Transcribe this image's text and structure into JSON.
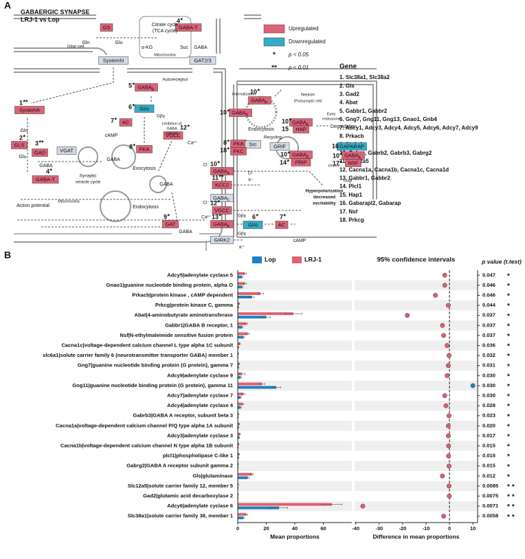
{
  "panel_a": {
    "label": "A",
    "title": "GABAERGIC SYNAPSE",
    "subtitle": "LRJ-1 vs Lop",
    "colors": {
      "up": "#de6279",
      "down": "#35abc7",
      "other": "#d3dbe6"
    },
    "legend": [
      {
        "state": "up",
        "label": "Upregulated"
      },
      {
        "state": "down",
        "label": "Downregulated"
      },
      {
        "symbol": "*",
        "label": "p < 0.05"
      },
      {
        "symbol": "**",
        "label": "p < 0.01"
      }
    ],
    "gene_title": "Gene",
    "genes": [
      "1. Slc38a1, Slc38a2",
      "2. Gls",
      "3. Gad2",
      "4. Abat",
      "5. Gabbr1, Gabbr2",
      "6. Gng7, Gng11, Gng13, Gnao1, Gnb4",
      "7. Adcy1, Adcy3, Adcy4, Adcy5, Adcy6, Adcy7, Adcy9",
      "8. Prkacb",
      "9. Slc6a1",
      "10. Gabrq, Gabrb2, Gabrb3, Gabrg2",
      "11. Slc12a5",
      "12. Cacna1a, Cacna1b, Cacna1c, Cacna1d",
      "13. Gabbr1, Gabbr2",
      "14. Plcl1",
      "15. Hap1",
      "16. Gabarapl2, Gabarap",
      "17. Nsf",
      "18. Prkcg"
    ],
    "nodes": [
      {
        "label": "GS",
        "state": "up"
      },
      {
        "label": "GABA-T",
        "state": "up",
        "num": "4",
        "sig": "*"
      },
      {
        "label": "SystemN",
        "state": "other"
      },
      {
        "label": "GAT2/3",
        "state": "other"
      },
      {
        "label": "GABA",
        "sub": "B",
        "state": "up",
        "num": "5",
        "sig": "*"
      },
      {
        "label": "Gi/o",
        "state": "down",
        "num": "6",
        "sig": "*"
      },
      {
        "label": "AC",
        "state": "up",
        "num": "7",
        "sig": "*"
      },
      {
        "label": "VGCC",
        "state": "up",
        "num": "12",
        "sig": "*"
      },
      {
        "label": "PKA",
        "state": "up",
        "num": "8",
        "sig": "*"
      },
      {
        "label": "SystemA",
        "state": "up",
        "num": "1",
        "sig": "**"
      },
      {
        "label": "GLS",
        "state": "up",
        "num": "2",
        "sig": "*"
      },
      {
        "label": "GAD",
        "state": "up",
        "num": "3",
        "sig": "**"
      },
      {
        "label": "VGAT",
        "state": "other"
      },
      {
        "label": "GABA-T",
        "state": "up",
        "num": "4",
        "sig": "*"
      },
      {
        "label": "GAT",
        "state": "up",
        "num": "9",
        "sig": "*"
      },
      {
        "label": "GABA",
        "sub": "A",
        "state": "up",
        "num": "10",
        "sig": "*"
      },
      {
        "label": "GABA",
        "sub": "A",
        "state": "up",
        "num": "10",
        "sig": "*"
      },
      {
        "label": "GABA",
        "sub": "A",
        "state": "up",
        "num": "10",
        "sig": "*"
      },
      {
        "label": "HAP",
        "state": "up",
        "num": "15"
      },
      {
        "label": "PKA",
        "state": "up",
        "num": "8",
        "sig": "*"
      },
      {
        "label": "Src",
        "state": "other"
      },
      {
        "label": "PKC",
        "state": "up",
        "num": "18",
        "sig": "*"
      },
      {
        "label": "GRIF",
        "state": "other"
      },
      {
        "label": "GABA",
        "sub": "A",
        "state": "up",
        "num": "10",
        "sig": "*"
      },
      {
        "label": "PRIP",
        "state": "up",
        "num": "14",
        "sig": "*"
      },
      {
        "label": "GAPARAP",
        "state": "down",
        "num": "16"
      },
      {
        "label": "GABA",
        "sub": "A",
        "state": "up",
        "num": "10",
        "sig": "*"
      },
      {
        "label": "NSF",
        "state": "up",
        "num": "17",
        "sig": "*"
      },
      {
        "label": "GABA",
        "sub": "A",
        "state": "up",
        "num": "10",
        "sig": "*"
      },
      {
        "label": "KCC2",
        "state": "up",
        "num": "11",
        "sig": "**"
      },
      {
        "label": "GABA",
        "sub": "C",
        "state": "other"
      },
      {
        "label": "VGCC",
        "state": "up",
        "num": "12",
        "sig": "*"
      },
      {
        "label": "GABA",
        "sub": "A",
        "state": "up",
        "num": "13",
        "sig": "*"
      },
      {
        "label": "Gi/o",
        "state": "down",
        "num": "6",
        "sig": "*"
      },
      {
        "label": "AC",
        "state": "up",
        "num": "7",
        "sig": "*"
      },
      {
        "label": "GIRK2",
        "state": "other"
      }
    ],
    "texts": [
      "Citrate cycle",
      "(TCA cycle)",
      "α-KG",
      "Suc",
      "Mitochondria",
      "Glial cell",
      "Gln",
      "Glu",
      "GABA",
      "Autoreceptor",
      "Gβγ",
      "Inhibition of",
      "GABA",
      "release",
      "cAMP",
      "Ca²⁺",
      "Gln",
      "Glu",
      "GABA",
      "GABA",
      "Synaptic",
      "vesicle cycle",
      "Exocytosis",
      "Endocytosis",
      "GABA",
      "Mitochondria",
      "Action potential",
      "GABA",
      "Internalization",
      "Neuron",
      "(Postsynaptic cell)",
      "Endocytosis",
      "Early",
      "endosome",
      "Degradation",
      "Recycling",
      "Vesicle",
      "Golgi",
      "Cl⁻",
      "K⁺",
      "Cl⁻",
      "Cl⁻",
      "Ca²⁺",
      "Gβγ",
      "cAMP",
      "Gβγ",
      "K⁺",
      "Hyperpolarization",
      "decreased",
      "excitability"
    ]
  },
  "panel_b_label": "B",
  "chart_data": [
    {
      "type": "bar",
      "orientation": "horizontal",
      "categories": [
        "Adcy5|adenylate cyclase 5",
        "Gnao1|guanine nucleotide binding protein, alpha O",
        "Prkacb|protein kinase , cAMP dependent",
        "Prkcg|protein kinase C, gamma",
        "Abat|4-aminobutyrate aminotransferase",
        "Gabbr1|GABA B receptor, 1",
        "Nsf|N-ethylmaleimide sensitive fusion protein",
        "Cacna1c|voltage-dependent calcium channel L type alpha 1C subunit",
        "slc6a1|solute carrier family 6 (neurotransmitter transporter GABA) member 1",
        "Gng7|guanine nucleotide binding protein (G protein), gamma 7",
        "Adcy9|adenylate cyclase 9",
        "Gng11|guanine nucleotide binding protein (G protein), gamma 11",
        "Adcy7|adenylate cyclase 7",
        "Adcy4|adenylate cyclase 4",
        "Gabrb3|GABA A receptor, subunit beta 3",
        "Cacna1a|voltage-dependent calcium channel P/Q type alpha 1A subunit",
        "Adcy3|adenylate cyclase 3",
        "Cacna1b|voltage-dependent calcium channel N type alpha 1B subunit",
        "plcl1|phospholipase C-like 1",
        "Gabrg2|GABA A receptor subunit gamma 2",
        "Gls|glutaminase",
        "Slc12a5|solute carrier family 12, member 5",
        "Gad2|glutamic acid decarboxylase 2",
        "Adcy6|adenylate cyclase 6",
        "Slc38a1|solute carrier family 38, member 1"
      ],
      "series": [
        {
          "name": "Lop",
          "color": "#1f7fbf",
          "values": [
            3,
            3,
            10,
            0.5,
            20,
            3,
            4,
            0.5,
            0.2,
            0.5,
            2,
            27,
            2,
            2,
            0.3,
            0.5,
            1,
            0.3,
            0.5,
            0.2,
            7,
            0.2,
            0.2,
            29,
            4
          ],
          "errors": [
            0.5,
            0.5,
            1.5,
            0.2,
            3,
            0.5,
            0.5,
            0.2,
            0.1,
            0.2,
            0.5,
            3,
            0.5,
            0.5,
            0.1,
            0.2,
            0.3,
            0.1,
            0.2,
            0.1,
            1,
            0.1,
            0.1,
            6,
            0.5
          ]
        },
        {
          "name": "LRJ-1",
          "color": "#e0606e",
          "values": [
            5,
            5,
            16,
            1,
            39,
            6,
            7,
            1.5,
            0.5,
            1,
            3,
            17,
            4,
            3.5,
            0.5,
            1,
            1.5,
            0.7,
            1,
            0.4,
            10,
            0.4,
            0.3,
            66,
            6
          ],
          "errors": [
            1,
            1,
            2,
            0.2,
            6,
            1,
            1,
            0.3,
            0.1,
            0.2,
            2,
            2,
            1,
            0.5,
            0.1,
            0.2,
            0.3,
            0.1,
            0.2,
            0.1,
            1,
            0.1,
            0.1,
            7,
            1
          ]
        }
      ],
      "xlabel": "Mean proportions",
      "xlim": [
        0,
        80
      ],
      "xticks": [
        0,
        20,
        40,
        60
      ],
      "stripes": "#efefef"
    },
    {
      "type": "scatter",
      "title": "95% confidence intervals",
      "values": [
        -2,
        -2,
        -6,
        -0.5,
        -18,
        -3,
        -2.5,
        -1,
        -0.2,
        -0.5,
        -1,
        10,
        -2,
        -1.5,
        -0.2,
        -0.5,
        -0.5,
        -0.4,
        -0.4,
        -0.2,
        -3,
        -0.2,
        -0.1,
        -37,
        -2.5
      ],
      "color": "#e0606e",
      "positive_color": "#1f7fbf",
      "xlabel": "Difference in mean proportions",
      "xlim": [
        -40.5,
        12
      ],
      "xticks": [
        -40,
        -30,
        -20,
        -10,
        0,
        10
      ],
      "reference_line": 0,
      "p_title": "p value (t.test)",
      "p_values": [
        0.047,
        0.046,
        0.046,
        0.044,
        0.037,
        0.037,
        0.037,
        0.036,
        0.032,
        0.031,
        0.03,
        0.03,
        0.03,
        0.028,
        0.023,
        0.02,
        0.017,
        0.015,
        0.015,
        0.015,
        0.012,
        0.0085,
        0.0075,
        0.0071,
        0.0058
      ],
      "p_value_labels": [
        "0.047",
        "0.046",
        "0.046",
        "0.044",
        "0.037",
        "0.037",
        "0.037",
        "0.036",
        "0.032",
        "0.031",
        "0.030",
        "0.030",
        "0.030",
        "0.028",
        "0.023",
        "0.020",
        "0.017",
        "0.015",
        "0.015",
        "0.015",
        "0.012",
        "0.0085",
        "0.0075",
        "0.0071",
        "0.0058"
      ],
      "significance": [
        "*",
        "*",
        "*",
        "*",
        "*",
        "*",
        "*",
        "*",
        "*",
        "*",
        "*",
        "*",
        "*",
        "*",
        "*",
        "*",
        "*",
        "*",
        "*",
        "*",
        "*",
        "**",
        "**",
        "**",
        "**"
      ]
    }
  ]
}
